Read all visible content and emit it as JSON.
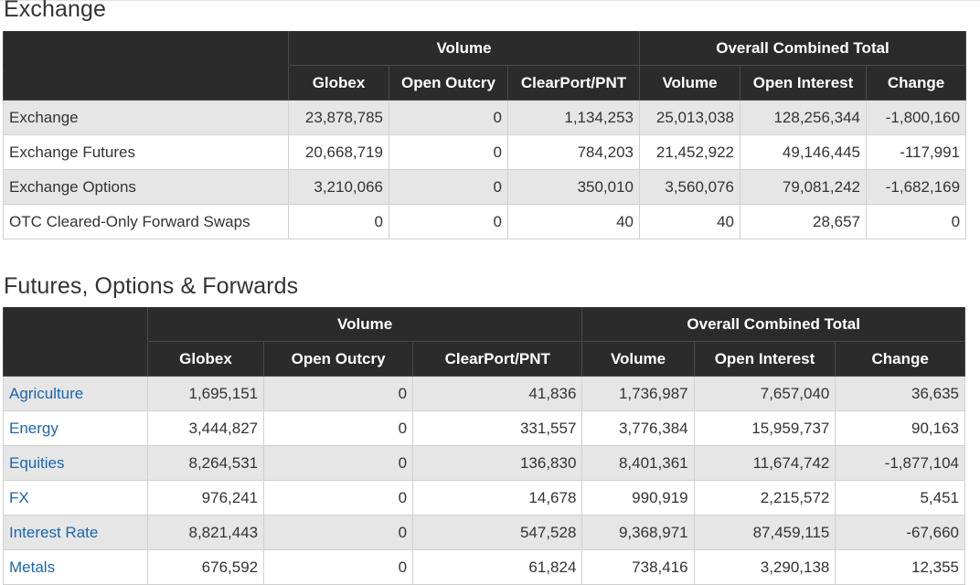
{
  "sections": {
    "exchange_title": "Exchange",
    "fof_title": "Futures, Options & Forwards"
  },
  "headers": {
    "volume": "Volume",
    "overall": "Overall Combined Total",
    "globex": "Globex",
    "open_outcry": "Open Outcry",
    "clearport": "ClearPort/PNT",
    "total_volume": "Volume",
    "open_interest": "Open Interest",
    "change": "Change"
  },
  "exchange_rows": [
    {
      "label": "Exchange",
      "globex": "23,878,785",
      "open_outcry": "0",
      "clearport": "1,134,253",
      "volume": "25,013,038",
      "open_interest": "128,256,344",
      "change": "-1,800,160"
    },
    {
      "label": "Exchange Futures",
      "globex": "20,668,719",
      "open_outcry": "0",
      "clearport": "784,203",
      "volume": "21,452,922",
      "open_interest": "49,146,445",
      "change": "-117,991"
    },
    {
      "label": "Exchange Options",
      "globex": "3,210,066",
      "open_outcry": "0",
      "clearport": "350,010",
      "volume": "3,560,076",
      "open_interest": "79,081,242",
      "change": "-1,682,169"
    },
    {
      "label": "OTC Cleared-Only Forward Swaps",
      "globex": "0",
      "open_outcry": "0",
      "clearport": "40",
      "volume": "40",
      "open_interest": "28,657",
      "change": "0"
    }
  ],
  "fof_rows": [
    {
      "label": "Agriculture",
      "globex": "1,695,151",
      "open_outcry": "0",
      "clearport": "41,836",
      "volume": "1,736,987",
      "open_interest": "7,657,040",
      "change": "36,635"
    },
    {
      "label": "Energy",
      "globex": "3,444,827",
      "open_outcry": "0",
      "clearport": "331,557",
      "volume": "3,776,384",
      "open_interest": "15,959,737",
      "change": "90,163"
    },
    {
      "label": "Equities",
      "globex": "8,264,531",
      "open_outcry": "0",
      "clearport": "136,830",
      "volume": "8,401,361",
      "open_interest": "11,674,742",
      "change": "-1,877,104"
    },
    {
      "label": "FX",
      "globex": "976,241",
      "open_outcry": "0",
      "clearport": "14,678",
      "volume": "990,919",
      "open_interest": "2,215,572",
      "change": "5,451"
    },
    {
      "label": "Interest Rate",
      "globex": "8,821,443",
      "open_outcry": "0",
      "clearport": "547,528",
      "volume": "9,368,971",
      "open_interest": "87,459,115",
      "change": "-67,660"
    },
    {
      "label": "Metals",
      "globex": "676,592",
      "open_outcry": "0",
      "clearport": "61,824",
      "volume": "738,416",
      "open_interest": "3,290,138",
      "change": "12,355"
    }
  ],
  "colors": {
    "header_bg": "#2b2b2b",
    "row_alt_bg": "#e6e6e6",
    "link": "#1a66b0"
  }
}
